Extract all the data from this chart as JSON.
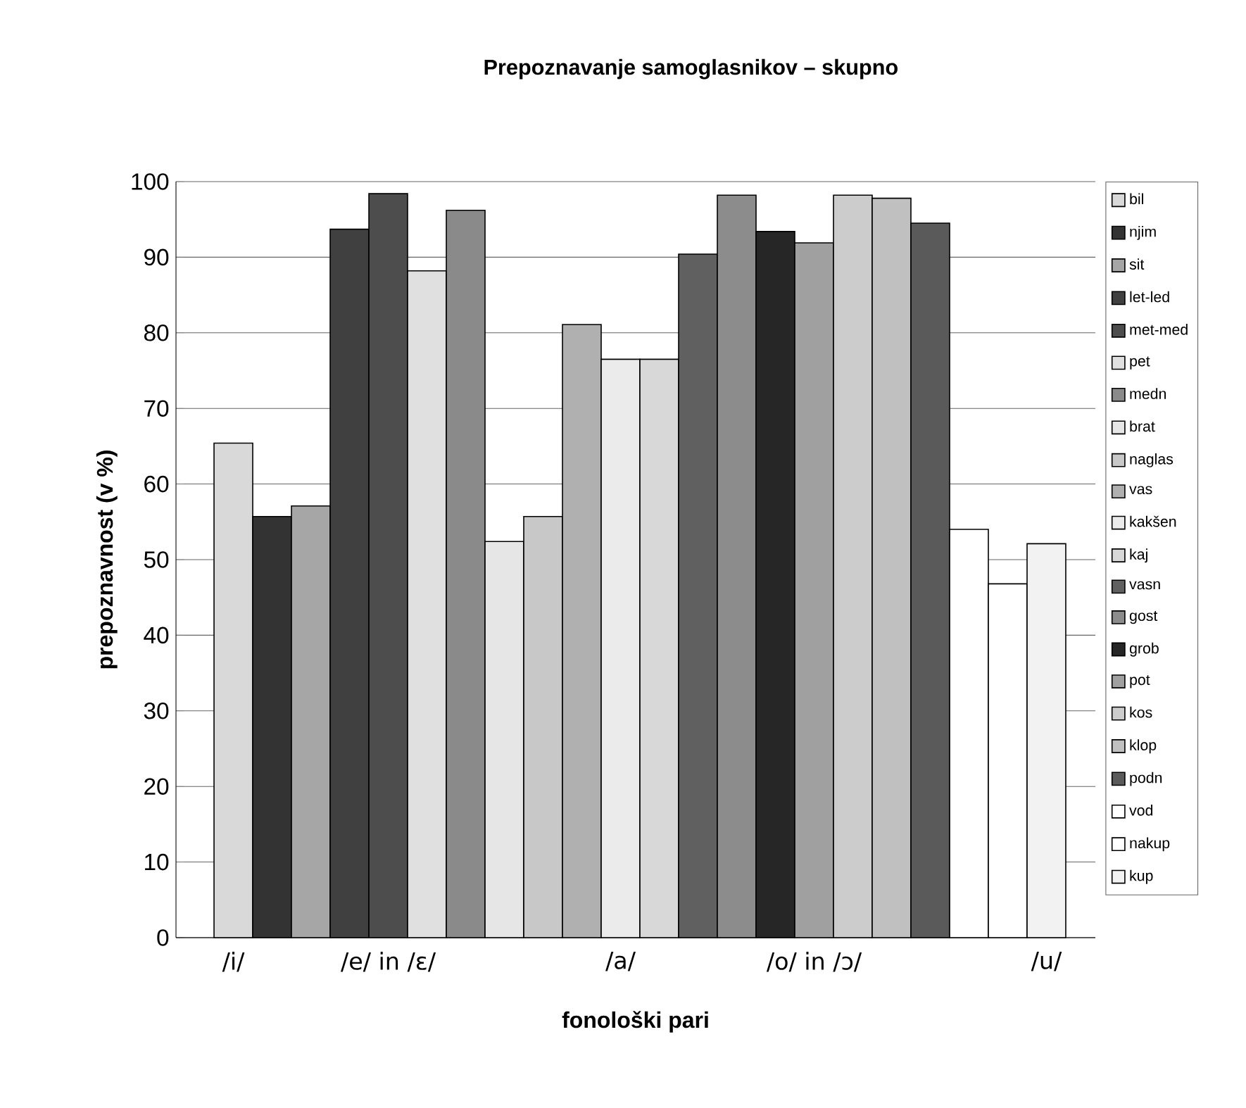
{
  "chart_data": {
    "type": "bar",
    "title": "Prepoznavanje samoglasnikov – skupno",
    "xlabel": "fonološki pari",
    "ylabel": "prepoznavnost (v %)",
    "categories": [
      "/i/",
      null,
      null,
      null,
      "/e/ in /ɛ/",
      null,
      null,
      null,
      null,
      null,
      "/a/",
      null,
      null,
      null,
      null,
      "/o/ in /ɔ/",
      null,
      null,
      null,
      null,
      null,
      "/u/"
    ],
    "ylim": [
      0,
      100
    ],
    "yticks": [
      0,
      10,
      20,
      30,
      40,
      50,
      60,
      70,
      80,
      90,
      100
    ],
    "grid": "y",
    "legend": "right",
    "series": [
      {
        "name": "bil",
        "color": "#d9d9d9",
        "values": [
          65.4,
          null,
          null,
          null,
          null,
          null,
          null,
          null,
          null,
          null,
          null,
          null,
          null,
          null,
          null,
          null,
          null,
          null,
          null,
          null,
          null,
          null
        ]
      },
      {
        "name": "njim",
        "color": "#333333",
        "values": [
          null,
          55.7,
          null,
          null,
          null,
          null,
          null,
          null,
          null,
          null,
          null,
          null,
          null,
          null,
          null,
          null,
          null,
          null,
          null,
          null,
          null,
          null
        ]
      },
      {
        "name": "sit",
        "color": "#a6a6a6",
        "values": [
          null,
          null,
          57.1,
          null,
          null,
          null,
          null,
          null,
          null,
          null,
          null,
          null,
          null,
          null,
          null,
          null,
          null,
          null,
          null,
          null,
          null,
          null
        ]
      },
      {
        "name": "let-led",
        "color": "#404040",
        "values": [
          null,
          null,
          null,
          93.7,
          null,
          null,
          null,
          null,
          null,
          null,
          null,
          null,
          null,
          null,
          null,
          null,
          null,
          null,
          null,
          null,
          null,
          null
        ]
      },
      {
        "name": "met-med",
        "color": "#4d4d4d",
        "values": [
          null,
          null,
          null,
          null,
          98.4,
          null,
          null,
          null,
          null,
          null,
          null,
          null,
          null,
          null,
          null,
          null,
          null,
          null,
          null,
          null,
          null,
          null
        ]
      },
      {
        "name": "pet",
        "color": "#e0e0e0",
        "values": [
          null,
          null,
          null,
          null,
          null,
          88.2,
          null,
          null,
          null,
          null,
          null,
          null,
          null,
          null,
          null,
          null,
          null,
          null,
          null,
          null,
          null,
          null
        ]
      },
      {
        "name": "medn",
        "color": "#8a8a8a",
        "values": [
          null,
          null,
          null,
          null,
          null,
          null,
          96.2,
          null,
          null,
          null,
          null,
          null,
          null,
          null,
          null,
          null,
          null,
          null,
          null,
          null,
          null,
          null
        ]
      },
      {
        "name": "brat",
        "color": "#e6e6e6",
        "values": [
          null,
          null,
          null,
          null,
          null,
          null,
          null,
          52.4,
          null,
          null,
          null,
          null,
          null,
          null,
          null,
          null,
          null,
          null,
          null,
          null,
          null,
          null
        ]
      },
      {
        "name": "naglas",
        "color": "#c8c8c8",
        "values": [
          null,
          null,
          null,
          null,
          null,
          null,
          null,
          null,
          55.7,
          null,
          null,
          null,
          null,
          null,
          null,
          null,
          null,
          null,
          null,
          null,
          null,
          null
        ]
      },
      {
        "name": "vas",
        "color": "#b0b0b0",
        "values": [
          null,
          null,
          null,
          null,
          null,
          null,
          null,
          null,
          null,
          81.1,
          null,
          null,
          null,
          null,
          null,
          null,
          null,
          null,
          null,
          null,
          null,
          null
        ]
      },
      {
        "name": "kakšen",
        "color": "#ebebeb",
        "values": [
          null,
          null,
          null,
          null,
          null,
          null,
          null,
          null,
          null,
          null,
          76.5,
          null,
          null,
          null,
          null,
          null,
          null,
          null,
          null,
          null,
          null,
          null
        ]
      },
      {
        "name": "kaj",
        "color": "#d8d8d8",
        "values": [
          null,
          null,
          null,
          null,
          null,
          null,
          null,
          null,
          null,
          null,
          null,
          76.5,
          null,
          null,
          null,
          null,
          null,
          null,
          null,
          null,
          null,
          null
        ]
      },
      {
        "name": "vasn",
        "color": "#606060",
        "values": [
          null,
          null,
          null,
          null,
          null,
          null,
          null,
          null,
          null,
          null,
          null,
          null,
          90.4,
          null,
          null,
          null,
          null,
          null,
          null,
          null,
          null,
          null
        ]
      },
      {
        "name": "gost",
        "color": "#8c8c8c",
        "values": [
          null,
          null,
          null,
          null,
          null,
          null,
          null,
          null,
          null,
          null,
          null,
          null,
          null,
          98.2,
          null,
          null,
          null,
          null,
          null,
          null,
          null,
          null
        ]
      },
      {
        "name": "grob",
        "color": "#262626",
        "values": [
          null,
          null,
          null,
          null,
          null,
          null,
          null,
          null,
          null,
          null,
          null,
          null,
          null,
          null,
          93.4,
          null,
          null,
          null,
          null,
          null,
          null,
          null
        ]
      },
      {
        "name": "pot",
        "color": "#a0a0a0",
        "values": [
          null,
          null,
          null,
          null,
          null,
          null,
          null,
          null,
          null,
          null,
          null,
          null,
          null,
          null,
          null,
          91.9,
          null,
          null,
          null,
          null,
          null,
          null
        ]
      },
      {
        "name": "kos",
        "color": "#cccccc",
        "values": [
          null,
          null,
          null,
          null,
          null,
          null,
          null,
          null,
          null,
          null,
          null,
          null,
          null,
          null,
          null,
          null,
          98.2,
          null,
          null,
          null,
          null,
          null
        ]
      },
      {
        "name": "klop",
        "color": "#c0c0c0",
        "values": [
          null,
          null,
          null,
          null,
          null,
          null,
          null,
          null,
          null,
          null,
          null,
          null,
          null,
          null,
          null,
          null,
          null,
          97.8,
          null,
          null,
          null,
          null
        ]
      },
      {
        "name": "podn",
        "color": "#5a5a5a",
        "values": [
          null,
          null,
          null,
          null,
          null,
          null,
          null,
          null,
          null,
          null,
          null,
          null,
          null,
          null,
          null,
          null,
          null,
          null,
          94.5,
          null,
          null,
          null
        ]
      },
      {
        "name": "vod",
        "color": "#ffffff",
        "values": [
          null,
          null,
          null,
          null,
          null,
          null,
          null,
          null,
          null,
          null,
          null,
          null,
          null,
          null,
          null,
          null,
          null,
          null,
          null,
          54.0,
          null,
          null
        ]
      },
      {
        "name": "nakup",
        "color": "#ffffff",
        "values": [
          null,
          null,
          null,
          null,
          null,
          null,
          null,
          null,
          null,
          null,
          null,
          null,
          null,
          null,
          null,
          null,
          null,
          null,
          null,
          null,
          46.8,
          null
        ]
      },
      {
        "name": "kup",
        "color": "#f2f2f2",
        "values": [
          null,
          null,
          null,
          null,
          null,
          null,
          null,
          null,
          null,
          null,
          null,
          null,
          null,
          null,
          null,
          null,
          null,
          null,
          null,
          null,
          null,
          52.1
        ]
      }
    ]
  }
}
